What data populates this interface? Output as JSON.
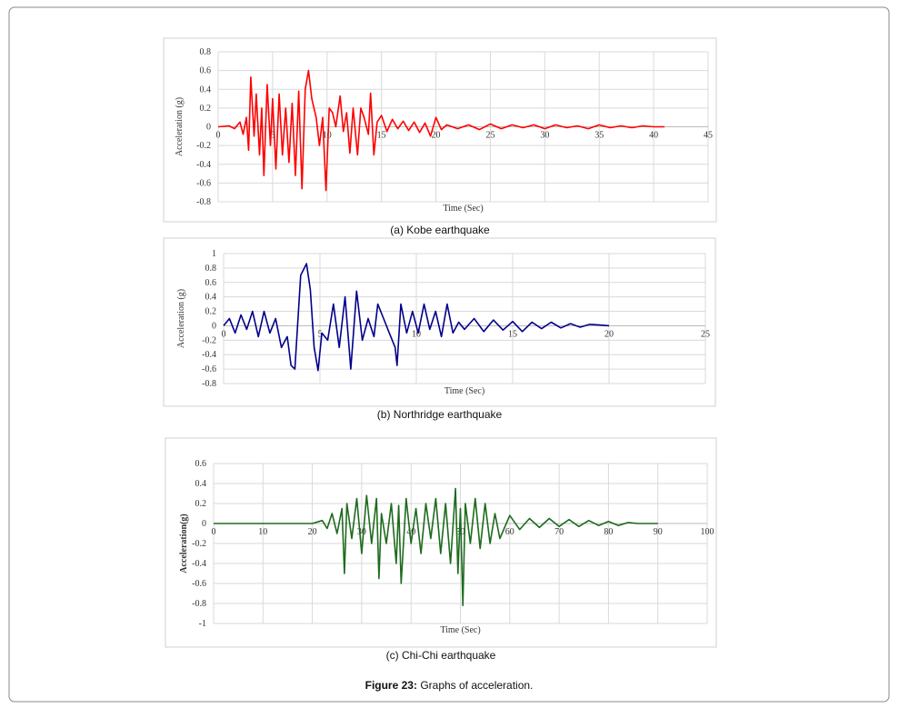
{
  "chart_data": [
    {
      "type": "line",
      "caption": "(a)    Kobe earthquake",
      "x_label": "Time (Sec)",
      "y_label": "Acceleration (g)",
      "color": "#ff0000",
      "grid": true,
      "xlim": [
        0,
        45
      ],
      "xticks": [
        0,
        5,
        10,
        15,
        20,
        25,
        30,
        35,
        40,
        45
      ],
      "ylim": [
        -0.8,
        0.8
      ],
      "yticks": [
        0.8,
        0.6,
        0.4,
        0.2,
        0,
        -0.2,
        -0.4,
        -0.6,
        -0.8
      ],
      "x": [
        0,
        1,
        1.5,
        2,
        2.3,
        2.6,
        2.8,
        3,
        3.3,
        3.5,
        3.8,
        4,
        4.2,
        4.5,
        4.8,
        5,
        5.3,
        5.6,
        5.9,
        6.2,
        6.5,
        6.8,
        7.1,
        7.4,
        7.7,
        8,
        8.3,
        8.6,
        9,
        9.3,
        9.6,
        9.9,
        10.2,
        10.5,
        10.8,
        11.2,
        11.5,
        11.8,
        12.1,
        12.4,
        12.8,
        13.1,
        13.4,
        13.8,
        14,
        14.3,
        14.6,
        15,
        15.5,
        16,
        16.5,
        17,
        17.5,
        18,
        18.5,
        19,
        19.5,
        20,
        20.5,
        21,
        22,
        23,
        24,
        25,
        26,
        27,
        28,
        29,
        30,
        31,
        32,
        33,
        34,
        35,
        36,
        37,
        38,
        39,
        40,
        41
      ],
      "values": [
        0,
        0.01,
        -0.02,
        0.05,
        -0.08,
        0.1,
        -0.25,
        0.53,
        -0.1,
        0.35,
        -0.3,
        0.2,
        -0.52,
        0.45,
        -0.2,
        0.3,
        -0.45,
        0.35,
        -0.3,
        0.2,
        -0.38,
        0.25,
        -0.52,
        0.38,
        -0.66,
        0.4,
        0.6,
        0.3,
        0.1,
        -0.2,
        0.1,
        -0.68,
        0.2,
        0.15,
        0,
        0.33,
        -0.05,
        0.15,
        -0.28,
        0.2,
        -0.3,
        0.2,
        0.1,
        -0.08,
        0.36,
        -0.3,
        0.05,
        0.12,
        -0.05,
        0.08,
        -0.02,
        0.06,
        -0.04,
        0.05,
        -0.06,
        0.04,
        -0.1,
        0.1,
        -0.03,
        0.02,
        -0.02,
        0.02,
        -0.03,
        0.03,
        -0.02,
        0.02,
        -0.01,
        0.02,
        -0.02,
        0.02,
        -0.01,
        0.01,
        -0.02,
        0.02,
        -0.01,
        0.01,
        -0.01,
        0.01,
        0,
        0
      ]
    },
    {
      "type": "line",
      "caption": "(b) Northridge earthquake",
      "x_label": "Time (Sec)",
      "y_label": "Acceleration (g)",
      "color": "#00008b",
      "grid": true,
      "xlim": [
        0,
        25
      ],
      "xticks": [
        0,
        5,
        10,
        15,
        20,
        25
      ],
      "ylim": [
        -0.8,
        1
      ],
      "yticks": [
        1,
        0.8,
        0.6,
        0.4,
        0.2,
        0,
        -0.2,
        -0.4,
        -0.6,
        -0.8
      ],
      "x": [
        0,
        0.3,
        0.6,
        0.9,
        1.2,
        1.5,
        1.8,
        2.1,
        2.4,
        2.7,
        3,
        3.3,
        3.5,
        3.7,
        4,
        4.3,
        4.5,
        4.7,
        4.9,
        5.1,
        5.4,
        5.7,
        6,
        6.3,
        6.6,
        6.9,
        7.2,
        7.5,
        7.8,
        8,
        8.3,
        8.6,
        8.9,
        9,
        9.2,
        9.5,
        9.8,
        10.1,
        10.4,
        10.7,
        11,
        11.3,
        11.6,
        11.9,
        12.2,
        12.5,
        13,
        13.5,
        14,
        14.5,
        15,
        15.5,
        16,
        16.5,
        17,
        17.5,
        18,
        18.5,
        19,
        19.5,
        20
      ],
      "values": [
        0,
        0.1,
        -0.1,
        0.15,
        -0.05,
        0.2,
        -0.15,
        0.2,
        -0.1,
        0.1,
        -0.3,
        -0.15,
        -0.55,
        -0.6,
        0.7,
        0.86,
        0.5,
        -0.3,
        -0.62,
        -0.1,
        -0.2,
        0.3,
        -0.3,
        0.4,
        -0.6,
        0.48,
        -0.2,
        0.1,
        -0.15,
        0.3,
        0.1,
        -0.1,
        -0.3,
        -0.55,
        0.3,
        -0.1,
        0.2,
        -0.1,
        0.3,
        -0.05,
        0.2,
        -0.15,
        0.3,
        -0.1,
        0.05,
        -0.05,
        0.1,
        -0.08,
        0.08,
        -0.06,
        0.06,
        -0.08,
        0.05,
        -0.04,
        0.05,
        -0.03,
        0.03,
        -0.02,
        0.02,
        0.01,
        0
      ]
    },
    {
      "type": "line",
      "caption": "(c)  Chi-Chi earthquake",
      "x_label": "Time (Sec)",
      "y_label": "Acceleration(g)",
      "color": "#1e6b1e",
      "grid": true,
      "xlim": [
        0,
        100
      ],
      "xticks": [
        0,
        10,
        20,
        30,
        40,
        50,
        60,
        70,
        80,
        90,
        100
      ],
      "ylim": [
        -1,
        0.6
      ],
      "yticks": [
        0.6,
        0.4,
        0.2,
        0,
        -0.2,
        -0.4,
        -0.6,
        -0.8,
        -1
      ],
      "x": [
        0,
        10,
        20,
        22,
        23,
        24,
        25,
        26,
        26.5,
        27,
        28,
        29,
        30,
        31,
        32,
        33,
        33.5,
        34,
        35,
        36,
        37,
        37.5,
        38,
        39,
        40,
        41,
        42,
        43,
        44,
        45,
        46,
        47,
        48,
        49,
        49.5,
        50,
        50.5,
        51,
        52,
        53,
        54,
        55,
        56,
        57,
        58,
        60,
        62,
        64,
        66,
        68,
        70,
        72,
        74,
        76,
        78,
        80,
        82,
        84,
        86,
        88,
        90
      ],
      "values": [
        0,
        0,
        0,
        0.03,
        -0.05,
        0.1,
        -0.1,
        0.15,
        -0.5,
        0.2,
        -0.15,
        0.25,
        -0.3,
        0.28,
        -0.2,
        0.25,
        -0.55,
        0.1,
        -0.2,
        0.2,
        -0.4,
        0.18,
        -0.6,
        0.25,
        -0.2,
        0.15,
        -0.3,
        0.2,
        -0.15,
        0.25,
        -0.3,
        0.2,
        -0.4,
        0.35,
        -0.5,
        0.15,
        -0.82,
        0.2,
        -0.2,
        0.25,
        -0.25,
        0.2,
        -0.2,
        0.1,
        -0.15,
        0.08,
        -0.06,
        0.05,
        -0.04,
        0.05,
        -0.03,
        0.04,
        -0.03,
        0.03,
        -0.02,
        0.02,
        -0.02,
        0.01,
        0,
        0,
        0
      ]
    }
  ],
  "figure_caption": {
    "label": "Figure 23:",
    "text": "Graphs of acceleration."
  }
}
